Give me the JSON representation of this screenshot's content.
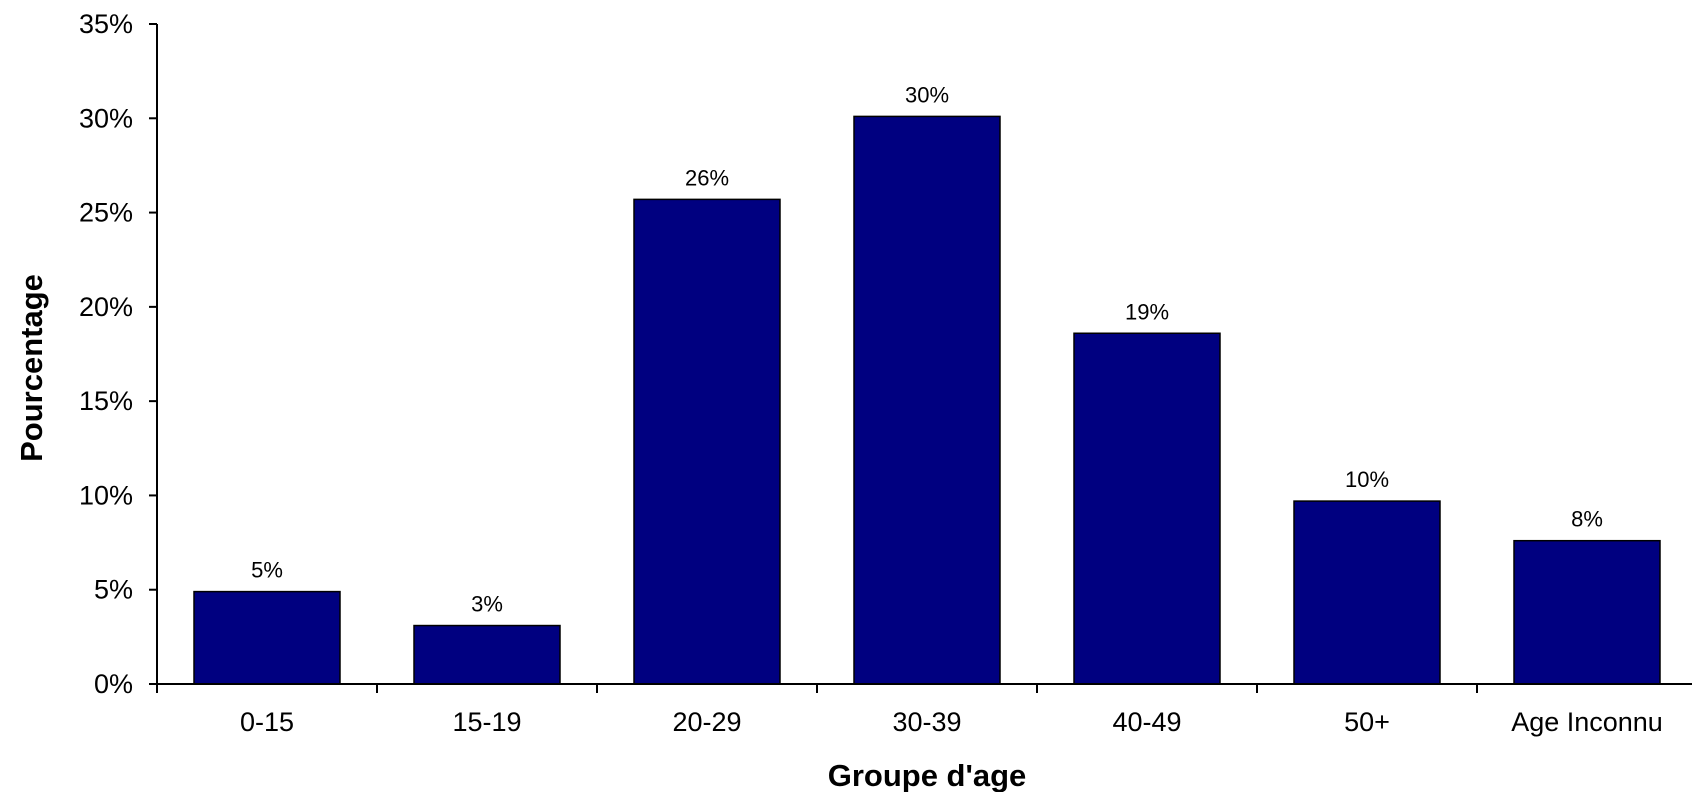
{
  "chart_data": {
    "type": "bar",
    "categories": [
      "0-15",
      "15-19",
      "20-29",
      "30-39",
      "40-49",
      "50+",
      "Age Inconnu"
    ],
    "values": [
      4.9,
      3.1,
      25.7,
      30.1,
      18.6,
      9.7,
      7.6
    ],
    "data_labels": [
      "5%",
      "3%",
      "26%",
      "30%",
      "19%",
      "10%",
      "8%"
    ],
    "xlabel": "Groupe d'age",
    "ylabel": "Pourcentage",
    "ylim": [
      0,
      35
    ],
    "yticks": [
      0,
      5,
      10,
      15,
      20,
      25,
      30,
      35
    ],
    "ytick_labels": [
      "0%",
      "5%",
      "10%",
      "15%",
      "20%",
      "25%",
      "30%",
      "35%"
    ],
    "grid": false,
    "legend": "none",
    "bar_color": "#000080",
    "bar_edge_color": "#000000"
  }
}
